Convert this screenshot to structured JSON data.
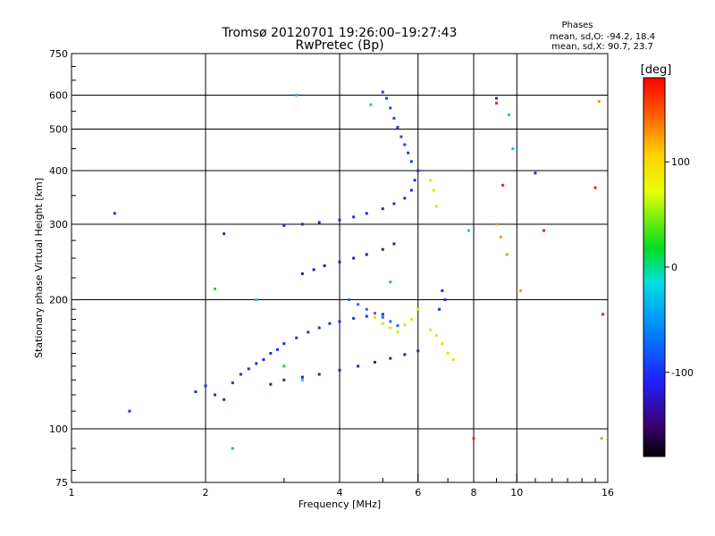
{
  "chart_data": {
    "type": "scatter",
    "title": "Tromsø 20120701 19:26:00–19:27:43",
    "subtitle": "RwPretec (Bp)",
    "stats": {
      "heading": "Phases",
      "line1": "mean, sd,O: -94.2, 18.4",
      "line2": "mean, sd,X:  90.7, 23.7"
    },
    "xlabel": "Frequency [MHz]",
    "ylabel": "Stationary phase Virtual Height [km]",
    "x_scale": "log",
    "y_scale": "log",
    "xlim": [
      1,
      16
    ],
    "ylim": [
      75,
      750
    ],
    "x_ticks": [
      1,
      2,
      4,
      6,
      8,
      10,
      16
    ],
    "x_tick_labels": [
      "1",
      "2",
      "4",
      "6",
      "8",
      "10",
      "16"
    ],
    "y_ticks": [
      75,
      100,
      200,
      300,
      400,
      500,
      600,
      750
    ],
    "y_tick_labels": [
      "75",
      "100",
      "200",
      "300",
      "400",
      "500",
      "600",
      "750"
    ],
    "grid": true,
    "colorbar": {
      "label": "[deg]",
      "range": [
        -180,
        180
      ],
      "ticks": [
        100,
        0,
        -100
      ],
      "tick_labels": [
        "100",
        "0",
        "-100"
      ]
    },
    "point_groups": [
      {
        "name": "",
        "color": "#2030e0",
        "points": [
          [
            1.9,
            122
          ],
          [
            2.0,
            126
          ],
          [
            2.1,
            120
          ],
          [
            2.2,
            117
          ],
          [
            2.3,
            128
          ],
          [
            2.4,
            134
          ],
          [
            2.5,
            138
          ],
          [
            2.6,
            142
          ],
          [
            2.7,
            145
          ],
          [
            2.8,
            150
          ],
          [
            2.9,
            153
          ],
          [
            3.0,
            158
          ],
          [
            3.2,
            163
          ],
          [
            3.4,
            168
          ],
          [
            3.6,
            172
          ],
          [
            3.8,
            176
          ],
          [
            4.0,
            178
          ],
          [
            4.3,
            181
          ],
          [
            4.6,
            183
          ],
          [
            5.0,
            185
          ]
        ]
      },
      {
        "name": "",
        "color": "#2a20c8",
        "points": [
          [
            2.8,
            127
          ],
          [
            3.0,
            130
          ],
          [
            3.3,
            132
          ],
          [
            3.6,
            134
          ],
          [
            4.0,
            137
          ],
          [
            4.4,
            140
          ],
          [
            4.8,
            143
          ],
          [
            5.2,
            146
          ],
          [
            5.6,
            149
          ],
          [
            6.0,
            152
          ]
        ]
      },
      {
        "name": "",
        "color": "#3a10b0",
        "points": [
          [
            3.3,
            230
          ],
          [
            3.5,
            235
          ],
          [
            3.7,
            240
          ],
          [
            4.0,
            245
          ],
          [
            4.3,
            250
          ],
          [
            4.6,
            255
          ],
          [
            5.0,
            262
          ],
          [
            5.3,
            270
          ]
        ]
      },
      {
        "name": "",
        "color": "#1e28e8",
        "points": [
          [
            3.0,
            298
          ],
          [
            3.3,
            300
          ],
          [
            3.6,
            303
          ],
          [
            4.0,
            307
          ],
          [
            4.3,
            312
          ],
          [
            4.6,
            318
          ],
          [
            5.0,
            326
          ],
          [
            5.3,
            335
          ],
          [
            5.6,
            345
          ],
          [
            5.8,
            360
          ],
          [
            5.9,
            380
          ],
          [
            6.0,
            400
          ]
        ]
      },
      {
        "name": "",
        "color": "#2040f0",
        "points": [
          [
            5.0,
            610
          ],
          [
            5.1,
            590
          ],
          [
            5.2,
            560
          ],
          [
            5.3,
            530
          ],
          [
            5.4,
            505
          ],
          [
            5.5,
            480
          ],
          [
            5.6,
            460
          ],
          [
            5.7,
            440
          ],
          [
            5.8,
            420
          ]
        ]
      },
      {
        "name": "",
        "color": "#3060ff",
        "points": [
          [
            4.2,
            200
          ],
          [
            4.4,
            195
          ],
          [
            4.6,
            190
          ],
          [
            4.8,
            186
          ],
          [
            5.0,
            182
          ],
          [
            5.2,
            178
          ],
          [
            5.4,
            174
          ]
        ]
      },
      {
        "name": "",
        "color": "#e8e000",
        "points": [
          [
            4.8,
            182
          ],
          [
            5.0,
            176
          ],
          [
            5.2,
            172
          ],
          [
            5.4,
            168
          ],
          [
            5.6,
            175
          ],
          [
            5.8,
            180
          ],
          [
            6.0,
            190
          ],
          [
            6.4,
            170
          ],
          [
            6.6,
            165
          ],
          [
            6.8,
            158
          ],
          [
            7.0,
            150
          ],
          [
            7.2,
            145
          ],
          [
            6.4,
            380
          ],
          [
            6.5,
            360
          ],
          [
            6.6,
            330
          ]
        ]
      },
      {
        "name": "",
        "color": "#f0a000",
        "points": [
          [
            9.0,
            300
          ],
          [
            9.2,
            280
          ],
          [
            9.5,
            255
          ],
          [
            15.5,
            95
          ],
          [
            15.3,
            580
          ],
          [
            10.2,
            210
          ]
        ]
      },
      {
        "name": "",
        "color": "#ff2000",
        "points": [
          [
            8.0,
            95
          ],
          [
            9.3,
            370
          ],
          [
            15.0,
            365
          ],
          [
            9.0,
            575
          ],
          [
            11.5,
            290
          ],
          [
            15.6,
            185
          ]
        ]
      },
      {
        "name": "",
        "color": "#00c8ff",
        "points": [
          [
            3.2,
            600
          ],
          [
            4.7,
            570
          ],
          [
            7.8,
            290
          ],
          [
            9.6,
            540
          ],
          [
            9.8,
            450
          ],
          [
            3.3,
            130
          ],
          [
            2.6,
            200
          ]
        ]
      },
      {
        "name": "",
        "color": "#20d040",
        "points": [
          [
            2.3,
            90
          ],
          [
            3.0,
            140
          ],
          [
            5.2,
            220
          ],
          [
            2.1,
            212
          ]
        ]
      },
      {
        "name": "",
        "color": "#1a30e0",
        "points": [
          [
            1.25,
            318
          ],
          [
            1.35,
            110
          ],
          [
            2.2,
            285
          ],
          [
            9.0,
            590
          ],
          [
            11.0,
            395
          ],
          [
            6.8,
            210
          ],
          [
            6.9,
            200
          ],
          [
            6.7,
            190
          ]
        ]
      }
    ]
  }
}
